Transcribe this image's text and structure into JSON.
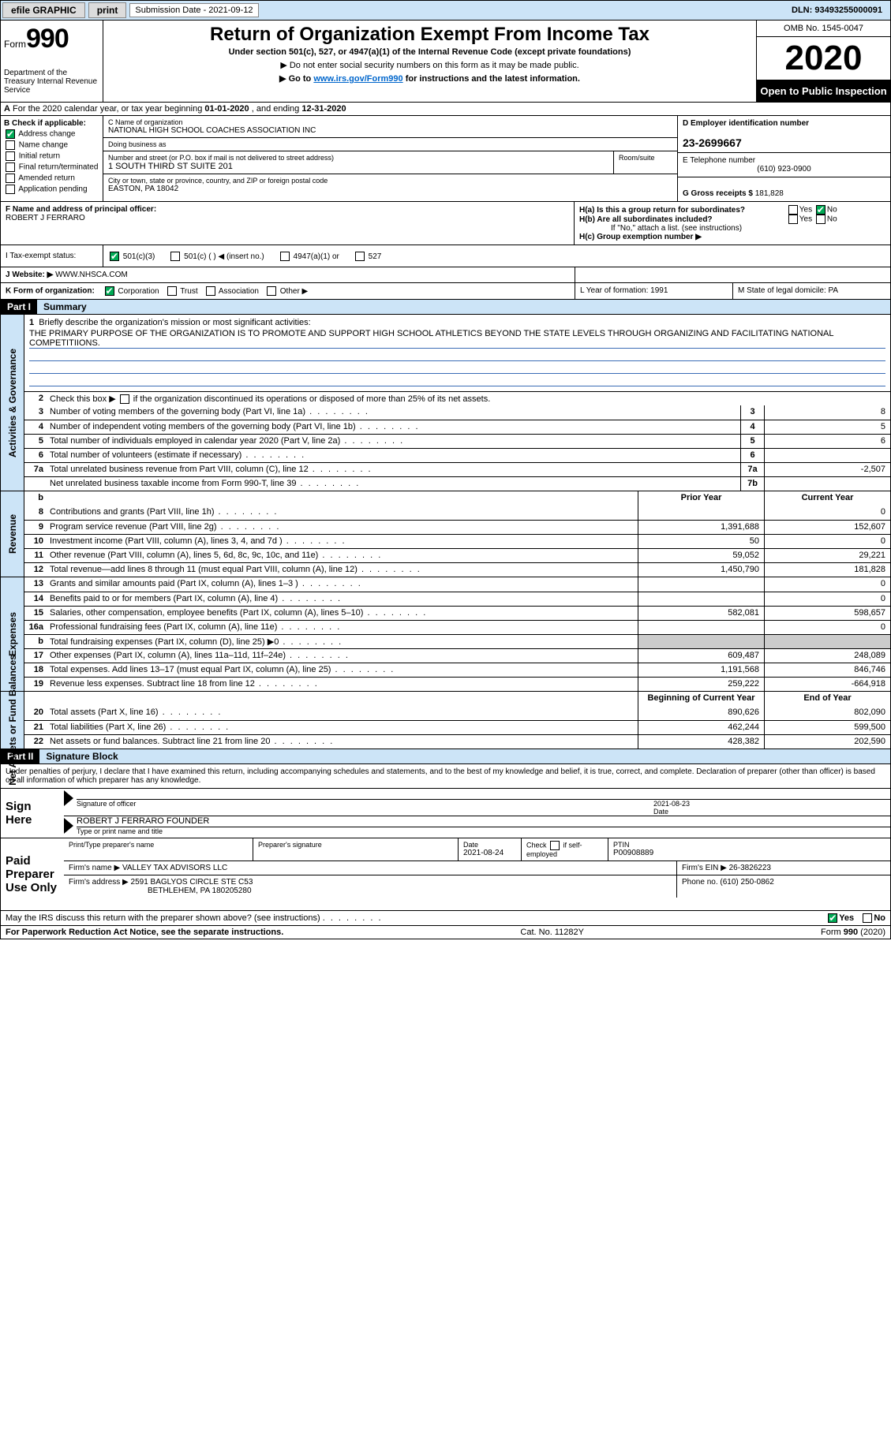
{
  "colors": {
    "header_bg": "#cce4f7",
    "link": "#0066cc",
    "checked": "#00aa55",
    "shade": "#cccccc",
    "underline": "#3a6cb5"
  },
  "topbar": {
    "efile": "efile GRAPHIC",
    "print": "print",
    "sub_label": "Submission Date - 2021-09-12",
    "dln": "DLN: 93493255000091"
  },
  "header": {
    "form_word": "Form",
    "form_num": "990",
    "dept": "Department of the Treasury\nInternal Revenue Service",
    "title": "Return of Organization Exempt From Income Tax",
    "sub1": "Under section 501(c), 527, or 4947(a)(1) of the Internal Revenue Code (except private foundations)",
    "sub2": "▶ Do not enter social security numbers on this form as it may be made public.",
    "sub3_pre": "▶ Go to ",
    "sub3_link": "www.irs.gov/Form990",
    "sub3_post": " for instructions and the latest information.",
    "omb": "OMB No. 1545-0047",
    "year": "2020",
    "open": "Open to Public Inspection"
  },
  "lineA": {
    "text_pre": "For the 2020 calendar year, or tax year beginning ",
    "begin": "01-01-2020",
    "mid": " , and ending ",
    "end": "12-31-2020",
    "prefix": "A"
  },
  "colB": {
    "label": "B Check if applicable:",
    "items": [
      {
        "label": "Address change",
        "checked": true
      },
      {
        "label": "Name change",
        "checked": false
      },
      {
        "label": "Initial return",
        "checked": false
      },
      {
        "label": "Final return/terminated",
        "checked": false
      },
      {
        "label": "Amended return",
        "checked": false
      },
      {
        "label": "Application pending",
        "checked": false
      }
    ]
  },
  "colC": {
    "name_label": "C Name of organization",
    "name": "NATIONAL HIGH SCHOOL COACHES ASSOCIATION INC",
    "dba_label": "Doing business as",
    "dba": "",
    "addr_label": "Number and street (or P.O. box if mail is not delivered to street address)",
    "room_label": "Room/suite",
    "addr": "1 SOUTH THIRD ST SUITE 201",
    "city_label": "City or town, state or province, country, and ZIP or foreign postal code",
    "city": "EASTON, PA  18042"
  },
  "colD": {
    "ein_label": "D Employer identification number",
    "ein": "23-2699667",
    "phone_label": "E Telephone number",
    "phone": "(610) 923-0900",
    "gross_label": "G Gross receipts $",
    "gross": "181,828"
  },
  "rowF": {
    "label": "F  Name and address of principal officer:",
    "value": "ROBERT J FERRARO"
  },
  "rowH": {
    "a_label": "H(a)  Is this a group return for subordinates?",
    "a_yes": "Yes",
    "a_no": "No",
    "a_checked": "No",
    "b_label": "H(b)  Are all subordinates included?",
    "b_yes": "Yes",
    "b_no": "No",
    "b_note": "If \"No,\" attach a list. (see instructions)",
    "c_label": "H(c)  Group exemption number ▶"
  },
  "rowI": {
    "label": "I  Tax-exempt status:",
    "opts": [
      {
        "label": "501(c)(3)",
        "checked": true
      },
      {
        "label": "501(c) ( )  ◀ (insert no.)",
        "checked": false
      },
      {
        "label": "4947(a)(1) or",
        "checked": false
      },
      {
        "label": "527",
        "checked": false
      }
    ]
  },
  "rowJ": {
    "label": "J   Website: ▶",
    "value": "WWW.NHSCA.COM"
  },
  "rowK": {
    "label": "K Form of organization:",
    "opts": [
      {
        "label": "Corporation",
        "checked": true
      },
      {
        "label": "Trust",
        "checked": false
      },
      {
        "label": "Association",
        "checked": false
      },
      {
        "label": "Other ▶",
        "checked": false
      }
    ],
    "L": "L Year of formation: 1991",
    "M": "M State of legal domicile: PA"
  },
  "part1": {
    "tag": "Part I",
    "title": "Summary",
    "q1": "Briefly describe the organization's mission or most significant activities:",
    "mission": "THE PRIMARY PURPOSE OF THE ORGANIZATION IS TO PROMOTE AND SUPPORT HIGH SCHOOL ATHLETICS BEYOND THE STATE LEVELS THROUGH ORGANIZING AND FACILITATING NATIONAL COMPETITIIONS.",
    "q2": "Check this box ▶        if the organization discontinued its operations or disposed of more than 25% of its net assets.",
    "gov_rows": [
      {
        "n": "3",
        "d": "Number of voting members of the governing body (Part VI, line 1a)",
        "box": "3",
        "v": "8"
      },
      {
        "n": "4",
        "d": "Number of independent voting members of the governing body (Part VI, line 1b)",
        "box": "4",
        "v": "5"
      },
      {
        "n": "5",
        "d": "Total number of individuals employed in calendar year 2020 (Part V, line 2a)",
        "box": "5",
        "v": "6"
      },
      {
        "n": "6",
        "d": "Total number of volunteers (estimate if necessary)",
        "box": "6",
        "v": ""
      },
      {
        "n": "7a",
        "d": "Total unrelated business revenue from Part VIII, column (C), line 12",
        "box": "7a",
        "v": "-2,507"
      },
      {
        "n": "",
        "d": "Net unrelated business taxable income from Form 990-T, line 39",
        "box": "7b",
        "v": ""
      }
    ],
    "col_head_prior": "Prior Year",
    "col_head_curr": "Current Year",
    "rev_rows": [
      {
        "n": "8",
        "d": "Contributions and grants (Part VIII, line 1h)",
        "p": "",
        "c": "0"
      },
      {
        "n": "9",
        "d": "Program service revenue (Part VIII, line 2g)",
        "p": "1,391,688",
        "c": "152,607"
      },
      {
        "n": "10",
        "d": "Investment income (Part VIII, column (A), lines 3, 4, and 7d )",
        "p": "50",
        "c": "0"
      },
      {
        "n": "11",
        "d": "Other revenue (Part VIII, column (A), lines 5, 6d, 8c, 9c, 10c, and 11e)",
        "p": "59,052",
        "c": "29,221"
      },
      {
        "n": "12",
        "d": "Total revenue—add lines 8 through 11 (must equal Part VIII, column (A), line 12)",
        "p": "1,450,790",
        "c": "181,828"
      }
    ],
    "exp_rows": [
      {
        "n": "13",
        "d": "Grants and similar amounts paid (Part IX, column (A), lines 1–3 )",
        "p": "",
        "c": "0"
      },
      {
        "n": "14",
        "d": "Benefits paid to or for members (Part IX, column (A), line 4)",
        "p": "",
        "c": "0"
      },
      {
        "n": "15",
        "d": "Salaries, other compensation, employee benefits (Part IX, column (A), lines 5–10)",
        "p": "582,081",
        "c": "598,657"
      },
      {
        "n": "16a",
        "d": "Professional fundraising fees (Part IX, column (A), line 11e)",
        "p": "",
        "c": "0"
      },
      {
        "n": "b",
        "d": "Total fundraising expenses (Part IX, column (D), line 25) ▶0",
        "p": "shade",
        "c": "shade"
      },
      {
        "n": "17",
        "d": "Other expenses (Part IX, column (A), lines 11a–11d, 11f–24e)",
        "p": "609,487",
        "c": "248,089"
      },
      {
        "n": "18",
        "d": "Total expenses. Add lines 13–17 (must equal Part IX, column (A), line 25)",
        "p": "1,191,568",
        "c": "846,746"
      },
      {
        "n": "19",
        "d": "Revenue less expenses. Subtract line 18 from line 12",
        "p": "259,222",
        "c": "-664,918"
      }
    ],
    "na_head_begin": "Beginning of Current Year",
    "na_head_end": "End of Year",
    "na_rows": [
      {
        "n": "20",
        "d": "Total assets (Part X, line 16)",
        "p": "890,626",
        "c": "802,090"
      },
      {
        "n": "21",
        "d": "Total liabilities (Part X, line 26)",
        "p": "462,244",
        "c": "599,500"
      },
      {
        "n": "22",
        "d": "Net assets or fund balances. Subtract line 21 from line 20",
        "p": "428,382",
        "c": "202,590"
      }
    ]
  },
  "bands": {
    "gov": "Activities & Governance",
    "rev": "Revenue",
    "exp": "Expenses",
    "na": "Net Assets or Fund Balances"
  },
  "part2": {
    "tag": "Part II",
    "title": "Signature Block",
    "decl": "Under penalties of perjury, I declare that I have examined this return, including accompanying schedules and statements, and to the best of my knowledge and belief, it is true, correct, and complete. Declaration of preparer (other than officer) is based on all information of which preparer has any knowledge."
  },
  "sign": {
    "label": "Sign Here",
    "sig_label": "Signature of officer",
    "date_label": "Date",
    "date": "2021-08-23",
    "name_label": "Type or print name and title",
    "name": "ROBERT J FERRARO  FOUNDER"
  },
  "paid": {
    "label": "Paid Preparer Use Only",
    "r1": {
      "c1_label": "Print/Type preparer's name",
      "c1": "",
      "c2_label": "Preparer's signature",
      "c2": "",
      "c3_label": "Date",
      "c3": "2021-08-24",
      "c4_label": "Check         if self-employed",
      "c5_label": "PTмн",
      "c5": "P00908889"
    },
    "r2": {
      "firm_label": "Firm's name    ▶",
      "firm": "VALLEY TAX ADVISORS LLC",
      "ein_label": "Firm's EIN ▶",
      "ein": "26-3826223"
    },
    "r3": {
      "addr_label": "Firm's address ▶",
      "addr1": "2591 BAGLYOS CIRCLE STE C53",
      "addr2": "BETHLEHEM, PA  180205280",
      "phone_label": "Phone no.",
      "phone": "(610) 250-0862"
    }
  },
  "may_irs": {
    "q": "May the IRS discuss this return with the preparer shown above? (see instructions)",
    "yes": "Yes",
    "no": "No"
  },
  "footer": {
    "left": "For Paperwork Reduction Act Notice, see the separate instructions.",
    "mid": "Cat. No. 11282Y",
    "right": "Form 990 (2020)"
  }
}
